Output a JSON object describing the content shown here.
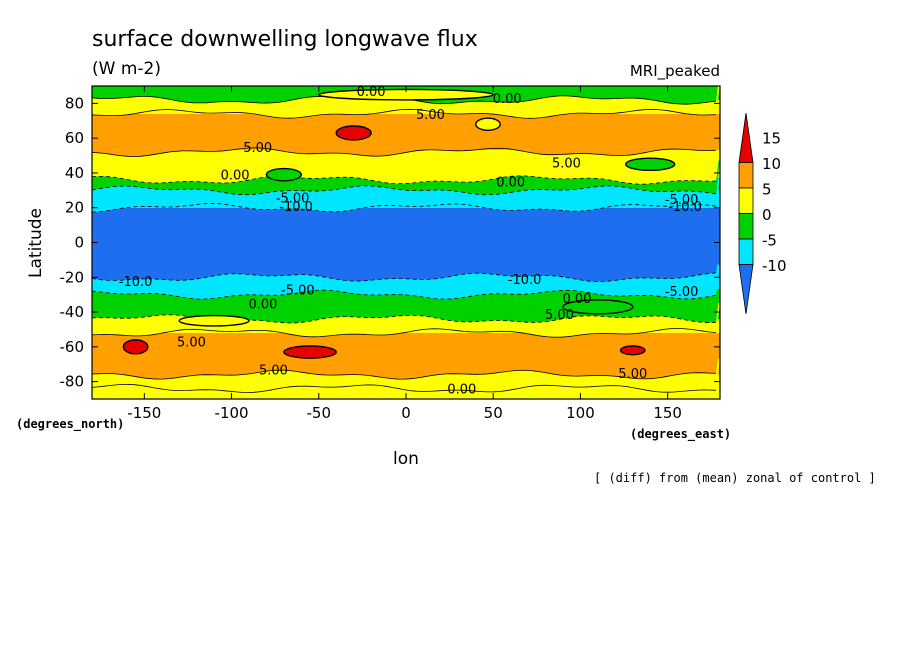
{
  "chart_data": {
    "type": "heatmap",
    "title": "surface downwelling longwave flux",
    "units": "(W m-2)",
    "model": "MRI_peaked",
    "xlabel": "lon",
    "ylabel": "Latitude",
    "x_unit_label": "(degrees_east)",
    "y_unit_label": "(degrees_north)",
    "footnote": "[ (diff) from (mean) zonal of control ]",
    "xlim": [
      -180,
      180
    ],
    "ylim": [
      -90,
      90
    ],
    "x_ticks": [
      -150,
      -100,
      -50,
      0,
      50,
      100,
      150
    ],
    "x_tick_labels": [
      "-150",
      "-100",
      "-50",
      "0",
      "50",
      "100",
      "150"
    ],
    "y_ticks": [
      80,
      60,
      40,
      20,
      0,
      -20,
      -40,
      -60,
      -80
    ],
    "y_tick_labels": [
      "80",
      "60",
      "40",
      "20",
      "0",
      "-20",
      "-40",
      "-60",
      "-80"
    ],
    "colorbar": {
      "levels": [
        -10,
        -5,
        0,
        5,
        10,
        15
      ],
      "labels": [
        "-10",
        "-5",
        "0",
        "5",
        "10",
        "15"
      ],
      "colors": [
        "#1e6ef0",
        "#00e6ff",
        "#00d200",
        "#ffff00",
        "#ffa000",
        "#e60000"
      ]
    },
    "zonal_bands": [
      {
        "lat": [
          -90,
          -84
        ],
        "value": 0
      },
      {
        "lat": [
          -84,
          -76
        ],
        "value": 2.5
      },
      {
        "lat": [
          -76,
          -52
        ],
        "value": 7.5
      },
      {
        "lat": [
          -52,
          -44
        ],
        "value": 2.5
      },
      {
        "lat": [
          -44,
          -30
        ],
        "value": -2.5
      },
      {
        "lat": [
          -30,
          -20
        ],
        "value": -7.5
      },
      {
        "lat": [
          -20,
          20
        ],
        "value": -12.5
      },
      {
        "lat": [
          20,
          30
        ],
        "value": -7.5
      },
      {
        "lat": [
          30,
          36
        ],
        "value": -2.5
      },
      {
        "lat": [
          36,
          52
        ],
        "value": 2.5
      },
      {
        "lat": [
          52,
          74
        ],
        "value": 7.5
      },
      {
        "lat": [
          74,
          82
        ],
        "value": 2.5
      },
      {
        "lat": [
          82,
          90
        ],
        "value": -2.5
      }
    ],
    "patches": [
      {
        "lon": -30,
        "lat": 63,
        "rlon": 10,
        "rlat": 4,
        "value": 12.5
      },
      {
        "lon": 47,
        "lat": 68,
        "rlon": 7,
        "rlat": 3.5,
        "value": 2.5
      },
      {
        "lon": -155,
        "lat": -60,
        "rlon": 7,
        "rlat": 4,
        "value": 12.5
      },
      {
        "lon": -55,
        "lat": -63,
        "rlon": 15,
        "rlat": 3.5,
        "value": 12.5
      },
      {
        "lon": 130,
        "lat": -62,
        "rlon": 7,
        "rlat": 2.5,
        "value": 12.5
      },
      {
        "lon": -70,
        "lat": 39,
        "rlon": 10,
        "rlat": 3.5,
        "value": -2.5
      },
      {
        "lon": 140,
        "lat": 45,
        "rlon": 14,
        "rlat": 3.5,
        "value": -2.5
      },
      {
        "lon": 110,
        "lat": -37,
        "rlon": 20,
        "rlat": 4,
        "value": -2.5
      },
      {
        "lon": -110,
        "lat": -45,
        "rlon": 20,
        "rlat": 3,
        "value": 2.5
      },
      {
        "lon": 0,
        "lat": 85,
        "rlon": 50,
        "rlat": 3,
        "value": 2.5
      }
    ],
    "contour_labels": [
      {
        "text": "0.00",
        "lon": -20,
        "lat": 87
      },
      {
        "text": "0.00",
        "lon": 58,
        "lat": 83
      },
      {
        "text": "5.00",
        "lon": 14,
        "lat": 74
      },
      {
        "text": "5.00",
        "lon": -85,
        "lat": 55
      },
      {
        "text": "5.00",
        "lon": 92,
        "lat": 46
      },
      {
        "text": "0.00",
        "lon": -98,
        "lat": 39
      },
      {
        "text": "0.00",
        "lon": 60,
        "lat": 35
      },
      {
        "text": "-5.00",
        "lon": -65,
        "lat": 26
      },
      {
        "text": "-5.00",
        "lon": 158,
        "lat": 25
      },
      {
        "text": "-10.0",
        "lon": -63,
        "lat": 21
      },
      {
        "text": "-10.0",
        "lon": 160,
        "lat": 21
      },
      {
        "text": "-10.0",
        "lon": -155,
        "lat": -22
      },
      {
        "text": "-10.0",
        "lon": 68,
        "lat": -21
      },
      {
        "text": "-5.00",
        "lon": -62,
        "lat": -27
      },
      {
        "text": "-5.00",
        "lon": 158,
        "lat": -28
      },
      {
        "text": "0.00",
        "lon": -82,
        "lat": -35
      },
      {
        "text": "0.00",
        "lon": 98,
        "lat": -32
      },
      {
        "text": "5.00",
        "lon": 88,
        "lat": -41
      },
      {
        "text": "5.00",
        "lon": -123,
        "lat": -57
      },
      {
        "text": "5.00",
        "lon": -76,
        "lat": -73
      },
      {
        "text": "5.00",
        "lon": 130,
        "lat": -75
      },
      {
        "text": "0.00",
        "lon": 32,
        "lat": -84
      }
    ]
  }
}
